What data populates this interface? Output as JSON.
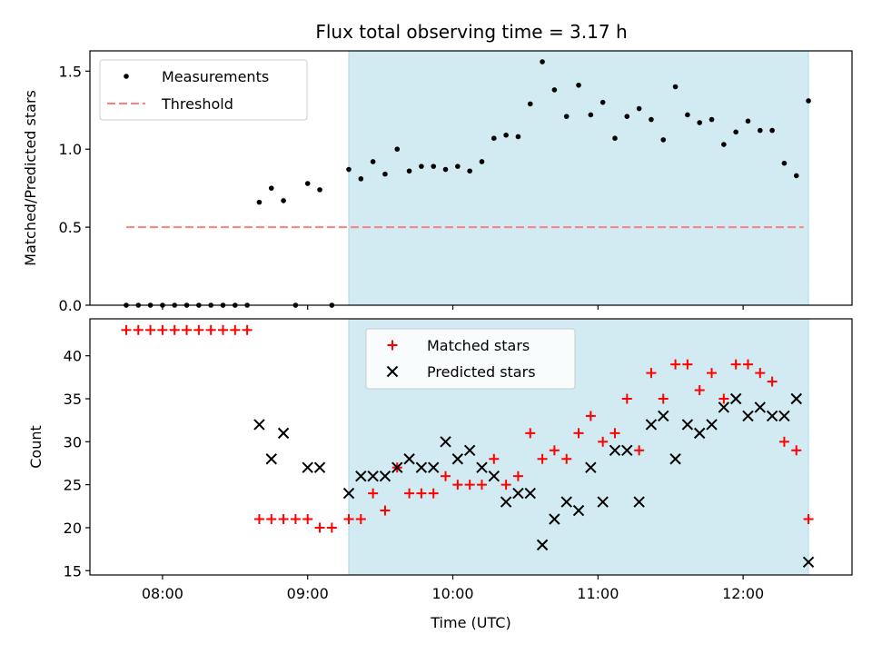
{
  "title": "Flux total observing time = 3.17 h",
  "colors": {
    "measurement": "#000000",
    "threshold": "#ff7f7f",
    "matched": "#ff0000",
    "predicted": "#000000",
    "span": "#add8e6"
  },
  "chart_data": [
    {
      "type": "scatter",
      "panel": "top",
      "ylabel": "Matched/Predicted stars",
      "ylim": [
        0,
        1.63
      ],
      "yticks": [
        0.0,
        0.5,
        1.0,
        1.5
      ],
      "ytick_labels": [
        "0.0",
        "0.5",
        "1.0",
        "1.5"
      ],
      "highlight_span": {
        "from": "09:17",
        "to": "12:27"
      },
      "legend": {
        "location": "upper left",
        "entries": [
          "Measurements",
          "Threshold"
        ]
      },
      "threshold": {
        "name": "Threshold",
        "value": 0.5,
        "from": "07:45",
        "to": "12:25",
        "style": "dashed"
      },
      "series": [
        {
          "name": "Measurements",
          "marker": "dot",
          "points": [
            [
              "07:45",
              0.0
            ],
            [
              "07:50",
              0.0
            ],
            [
              "07:55",
              0.0
            ],
            [
              "08:00",
              0.0
            ],
            [
              "08:05",
              0.0
            ],
            [
              "08:10",
              0.0
            ],
            [
              "08:15",
              0.0
            ],
            [
              "08:20",
              0.0
            ],
            [
              "08:25",
              0.0
            ],
            [
              "08:30",
              0.0
            ],
            [
              "08:35",
              0.0
            ],
            [
              "08:40",
              0.66
            ],
            [
              "08:45",
              0.75
            ],
            [
              "08:50",
              0.67
            ],
            [
              "08:55",
              0.0
            ],
            [
              "09:00",
              0.78
            ],
            [
              "09:05",
              0.74
            ],
            [
              "09:10",
              0.0
            ],
            [
              "09:17",
              0.87
            ],
            [
              "09:22",
              0.81
            ],
            [
              "09:27",
              0.92
            ],
            [
              "09:32",
              0.84
            ],
            [
              "09:37",
              1.0
            ],
            [
              "09:42",
              0.86
            ],
            [
              "09:47",
              0.89
            ],
            [
              "09:52",
              0.89
            ],
            [
              "09:57",
              0.87
            ],
            [
              "10:02",
              0.89
            ],
            [
              "10:07",
              0.86
            ],
            [
              "10:12",
              0.92
            ],
            [
              "10:17",
              1.07
            ],
            [
              "10:22",
              1.09
            ],
            [
              "10:27",
              1.08
            ],
            [
              "10:32",
              1.29
            ],
            [
              "10:37",
              1.56
            ],
            [
              "10:42",
              1.38
            ],
            [
              "10:47",
              1.21
            ],
            [
              "10:52",
              1.41
            ],
            [
              "10:57",
              1.22
            ],
            [
              "11:02",
              1.3
            ],
            [
              "11:07",
              1.07
            ],
            [
              "11:12",
              1.21
            ],
            [
              "11:17",
              1.26
            ],
            [
              "11:22",
              1.19
            ],
            [
              "11:27",
              1.06
            ],
            [
              "11:32",
              1.4
            ],
            [
              "11:37",
              1.22
            ],
            [
              "11:42",
              1.17
            ],
            [
              "11:47",
              1.19
            ],
            [
              "11:52",
              1.03
            ],
            [
              "11:57",
              1.11
            ],
            [
              "12:02",
              1.18
            ],
            [
              "12:07",
              1.12
            ],
            [
              "12:12",
              1.12
            ],
            [
              "12:17",
              0.91
            ],
            [
              "12:22",
              0.83
            ],
            [
              "12:27",
              1.31
            ]
          ]
        }
      ]
    },
    {
      "type": "scatter",
      "panel": "bottom",
      "xlabel": "Time (UTC)",
      "ylabel": "Count",
      "ylim": [
        14.5,
        44.3
      ],
      "yticks": [
        15,
        20,
        25,
        30,
        35,
        40
      ],
      "ytick_labels": [
        "15",
        "20",
        "25",
        "30",
        "35",
        "40"
      ],
      "xlim": [
        "07:30",
        "12:45"
      ],
      "xticks": [
        "08:00",
        "09:00",
        "10:00",
        "11:00",
        "12:00"
      ],
      "xtick_labels": [
        "08:00",
        "09:00",
        "10:00",
        "11:00",
        "12:00"
      ],
      "highlight_span": {
        "from": "09:17",
        "to": "12:27"
      },
      "legend": {
        "location": "upper center",
        "entries": [
          "Matched stars",
          "Predicted stars"
        ]
      },
      "series": [
        {
          "name": "Matched stars",
          "marker": "plus",
          "points": [
            [
              "07:45",
              43
            ],
            [
              "07:50",
              43
            ],
            [
              "07:55",
              43
            ],
            [
              "08:00",
              43
            ],
            [
              "08:05",
              43
            ],
            [
              "08:10",
              43
            ],
            [
              "08:15",
              43
            ],
            [
              "08:20",
              43
            ],
            [
              "08:25",
              43
            ],
            [
              "08:30",
              43
            ],
            [
              "08:35",
              43
            ],
            [
              "08:40",
              21
            ],
            [
              "08:45",
              21
            ],
            [
              "08:50",
              21
            ],
            [
              "08:55",
              21
            ],
            [
              "09:00",
              21
            ],
            [
              "09:05",
              20
            ],
            [
              "09:10",
              20
            ],
            [
              "09:17",
              21
            ],
            [
              "09:22",
              21
            ],
            [
              "09:27",
              24
            ],
            [
              "09:32",
              22
            ],
            [
              "09:37",
              27
            ],
            [
              "09:42",
              24
            ],
            [
              "09:47",
              24
            ],
            [
              "09:52",
              24
            ],
            [
              "09:57",
              26
            ],
            [
              "10:02",
              25
            ],
            [
              "10:07",
              25
            ],
            [
              "10:12",
              25
            ],
            [
              "10:17",
              28
            ],
            [
              "10:22",
              25
            ],
            [
              "10:27",
              26
            ],
            [
              "10:32",
              31
            ],
            [
              "10:37",
              28
            ],
            [
              "10:42",
              29
            ],
            [
              "10:47",
              28
            ],
            [
              "10:52",
              31
            ],
            [
              "10:57",
              33
            ],
            [
              "11:02",
              30
            ],
            [
              "11:07",
              31
            ],
            [
              "11:12",
              35
            ],
            [
              "11:17",
              29
            ],
            [
              "11:22",
              38
            ],
            [
              "11:27",
              35
            ],
            [
              "11:32",
              39
            ],
            [
              "11:37",
              39
            ],
            [
              "11:42",
              36
            ],
            [
              "11:47",
              38
            ],
            [
              "11:52",
              35
            ],
            [
              "11:57",
              39
            ],
            [
              "12:02",
              39
            ],
            [
              "12:07",
              38
            ],
            [
              "12:12",
              37
            ],
            [
              "12:17",
              30
            ],
            [
              "12:22",
              29
            ],
            [
              "12:27",
              21
            ]
          ]
        },
        {
          "name": "Predicted stars",
          "marker": "x",
          "points": [
            [
              "08:40",
              32
            ],
            [
              "08:45",
              28
            ],
            [
              "08:50",
              31
            ],
            [
              "09:00",
              27
            ],
            [
              "09:05",
              27
            ],
            [
              "09:17",
              24
            ],
            [
              "09:22",
              26
            ],
            [
              "09:27",
              26
            ],
            [
              "09:32",
              26
            ],
            [
              "09:37",
              27
            ],
            [
              "09:42",
              28
            ],
            [
              "09:47",
              27
            ],
            [
              "09:52",
              27
            ],
            [
              "09:57",
              30
            ],
            [
              "10:02",
              28
            ],
            [
              "10:07",
              29
            ],
            [
              "10:12",
              27
            ],
            [
              "10:17",
              26
            ],
            [
              "10:22",
              23
            ],
            [
              "10:27",
              24
            ],
            [
              "10:32",
              24
            ],
            [
              "10:37",
              18
            ],
            [
              "10:42",
              21
            ],
            [
              "10:47",
              23
            ],
            [
              "10:52",
              22
            ],
            [
              "10:57",
              27
            ],
            [
              "11:02",
              23
            ],
            [
              "11:07",
              29
            ],
            [
              "11:12",
              29
            ],
            [
              "11:17",
              23
            ],
            [
              "11:22",
              32
            ],
            [
              "11:27",
              33
            ],
            [
              "11:32",
              28
            ],
            [
              "11:37",
              32
            ],
            [
              "11:42",
              31
            ],
            [
              "11:47",
              32
            ],
            [
              "11:52",
              34
            ],
            [
              "11:57",
              35
            ],
            [
              "12:02",
              33
            ],
            [
              "12:07",
              34
            ],
            [
              "12:12",
              33
            ],
            [
              "12:17",
              33
            ],
            [
              "12:22",
              35
            ],
            [
              "12:27",
              16
            ]
          ]
        }
      ]
    }
  ]
}
